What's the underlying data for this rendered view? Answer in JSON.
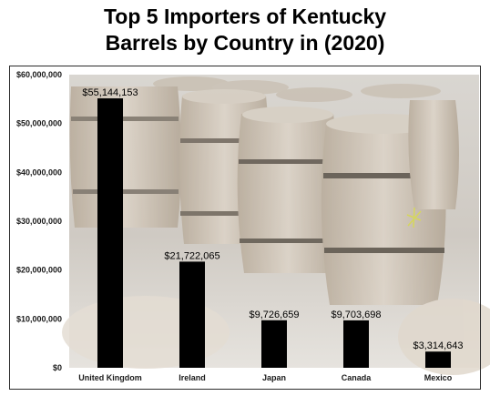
{
  "chart_data": {
    "type": "bar",
    "title_lines": [
      "Top 5 Importers of Kentucky",
      "Barrels by Country in (2020)"
    ],
    "categories": [
      "United Kingdom",
      "Ireland",
      "Japan",
      "Canada",
      "Mexico"
    ],
    "values": [
      55144153,
      21722065,
      9726659,
      9703698,
      3314643
    ],
    "data_labels": [
      "$55,144,153",
      "$21,722,065",
      "$9,726,659",
      "$9,703,698",
      "$3,314,643"
    ],
    "y_ticks": [
      "$0",
      "$10,000,000",
      "$20,000,000",
      "$30,000,000",
      "$40,000,000",
      "$50,000,000",
      "$60,000,000"
    ],
    "ylim": [
      0,
      60000000
    ],
    "xlabel": "",
    "ylabel": "",
    "grid": false,
    "legend": "none",
    "bar_color": "#000000",
    "background": "photo of wooden whiskey barrels"
  }
}
